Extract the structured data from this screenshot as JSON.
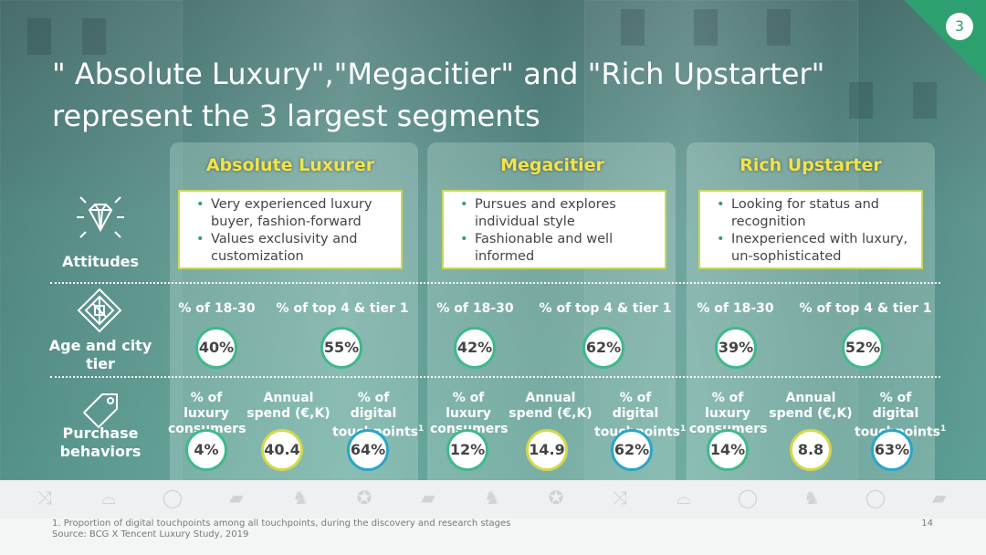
{
  "slide_number": "3",
  "title_line1": "\" Absolute Luxury\",\"Megacitier\" and \"Rich Upstarter\"",
  "title_line2": "represent the 3 largest segments",
  "row_labels": {
    "attitudes": "Attitudes",
    "age_city": "Age and city tier",
    "purchase": "Purchase behaviors"
  },
  "segments": [
    {
      "name": "Absolute Luxurer",
      "attitudes": [
        "Very experienced luxury buyer, fashion-forward",
        "Values exclusivity and customization"
      ],
      "age_label": "% of 18-30",
      "age_value": "40%",
      "city_label": "% of top 4 & tier 1",
      "city_value": "55%",
      "lux_label": "% of luxury consumers",
      "lux_value": "4%",
      "spend_label": "Annual spend (€,K)",
      "spend_value": "40.4",
      "digital_label": "% of digital touchpoints",
      "digital_value": "64%"
    },
    {
      "name": "Megacitier",
      "attitudes": [
        "Pursues and explores individual style",
        "Fashionable and well informed"
      ],
      "age_label": "% of 18-30",
      "age_value": "42%",
      "city_label": "% of top 4 & tier 1",
      "city_value": "62%",
      "lux_label": "% of luxury consumers",
      "lux_value": "12%",
      "spend_label": "Annual spend (€,K)",
      "spend_value": "14.9",
      "digital_label": "% of digital touchpoints",
      "digital_value": "62%"
    },
    {
      "name": "Rich Upstarter",
      "attitudes": [
        "Looking for status and recognition",
        "Inexperienced with luxury, un-sophisticated"
      ],
      "age_label": "% of 18-30",
      "age_value": "39%",
      "city_label": "% of top 4 & tier 1",
      "city_value": "52%",
      "lux_label": "% of luxury consumers",
      "lux_value": "14%",
      "spend_label": "Annual spend (€,K)",
      "spend_value": "8.8",
      "digital_label": "% of digital touchpoints",
      "digital_value": "63%"
    }
  ],
  "footnote_marker": "1",
  "footnote": "1.   Proportion of digital touchpoints among all touchpoints, during the discovery and research stages",
  "source": "Source: BCG X Tencent Luxury Study, 2019",
  "page_number": "14",
  "colors": {
    "accent": "#2e9f6f",
    "title_yellow": "#f2e34a",
    "green_ring": "#3fb98a",
    "yellow_ring": "#d4d84a",
    "blue_ring": "#2aa5c9"
  }
}
